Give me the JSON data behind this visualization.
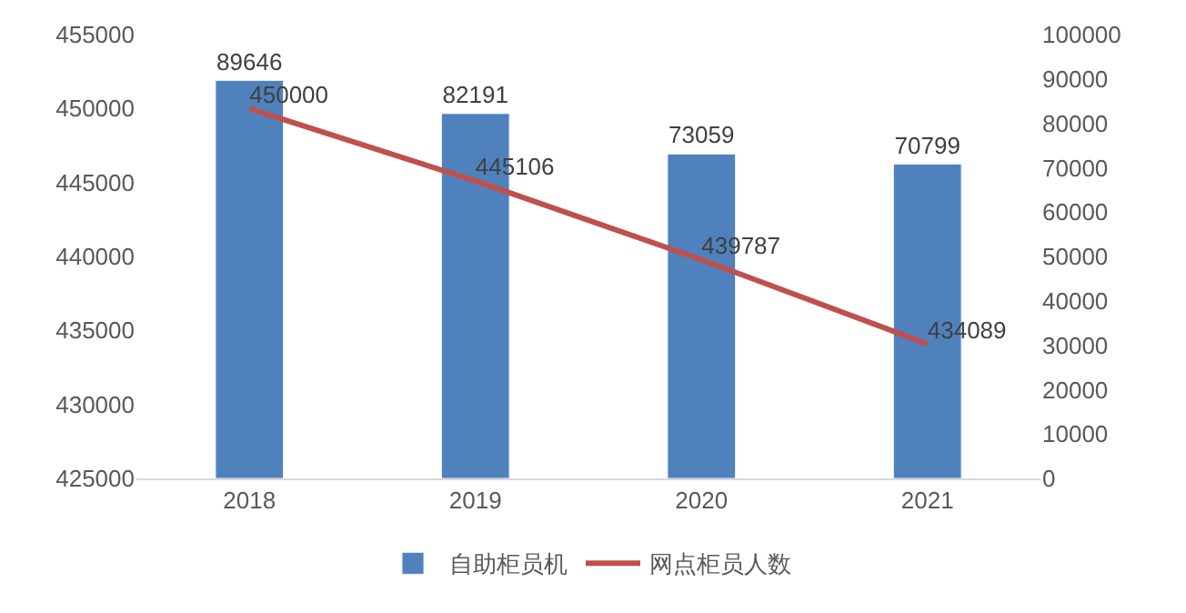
{
  "chart_data": {
    "type": "bar",
    "categories": [
      "2018",
      "2019",
      "2020",
      "2021"
    ],
    "series": [
      {
        "name": "自助柜员机",
        "color": "#4f81bd",
        "axis": "y2",
        "values": [
          89646,
          82191,
          73059,
          70799
        ]
      },
      {
        "name": "网点柜员人数",
        "type": "line",
        "color": "#c0504d",
        "values": [
          450000,
          445106,
          439787,
          434089
        ]
      }
    ],
    "ylim": [
      425000,
      455000
    ],
    "yticks": [
      425000,
      430000,
      435000,
      440000,
      445000,
      450000,
      455000
    ],
    "y2lim": [
      0,
      100000
    ],
    "y2ticks": [
      0,
      10000,
      20000,
      30000,
      40000,
      50000,
      60000,
      70000,
      80000,
      90000,
      100000
    ],
    "data_labels": true,
    "legend": "bottom",
    "marker": "none",
    "line_style": "solid"
  }
}
